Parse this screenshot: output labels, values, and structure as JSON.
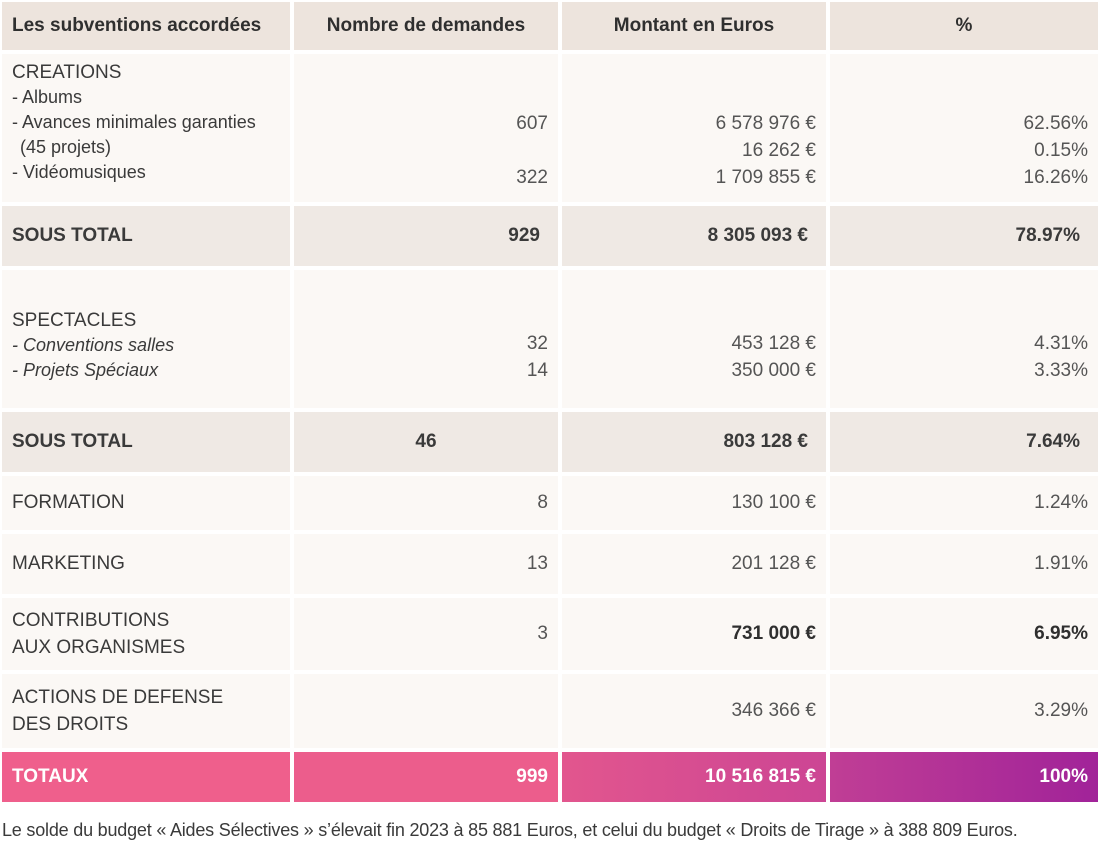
{
  "headers": [
    "Les subventions accordées",
    "Nombre de demandes",
    "Montant en Euros",
    "%"
  ],
  "creations": {
    "label": "CREATIONS",
    "sub": [
      "- Albums",
      "- Avances minimales garanties",
      "(45 projets)",
      "- Vidéomusiques"
    ],
    "nombre": [
      "607",
      "322"
    ],
    "montant": [
      "6 578 976 €",
      "16 262 €",
      "1 709 855 €"
    ],
    "pct": [
      "62.56%",
      "0.15%",
      "16.26%"
    ]
  },
  "sous_total_1": {
    "label": "SOUS TOTAL",
    "nombre": "929",
    "montant": "8 305 093 €",
    "pct": "78.97%"
  },
  "spectacles": {
    "label": "SPECTACLES",
    "sub": [
      "- Conventions salles",
      "- Projets Spéciaux"
    ],
    "nombre": [
      "32",
      "14"
    ],
    "montant": [
      "453 128 €",
      "350 000 €"
    ],
    "pct": [
      "4.31%",
      "3.33%"
    ]
  },
  "sous_total_2": {
    "label": "SOUS TOTAL",
    "nombre": "46",
    "montant": "803 128 €",
    "pct": "7.64%"
  },
  "formation": {
    "label": "FORMATION",
    "nombre": "8",
    "montant": "130 100 €",
    "pct": "1.24%"
  },
  "marketing": {
    "label": "MARKETING",
    "nombre": "13",
    "montant": "201 128 €",
    "pct": "1.91%"
  },
  "contributions": {
    "label1": "CONTRIBUTIONS",
    "label2": "AUX ORGANISMES",
    "nombre": "3",
    "montant": "731 000 €",
    "pct": "6.95%"
  },
  "defense": {
    "label1": "ACTIONS DE DEFENSE",
    "label2": "DES DROITS",
    "montant": "346 366 €",
    "pct": "3.29%"
  },
  "totaux": {
    "label": "TOTAUX",
    "nombre": "999",
    "montant": "10 516 815 €",
    "pct": "100%"
  },
  "footnote": "Le solde du budget « Aides Sélectives » s’élevait fin 2023 à 85 881 Euros, et celui du budget « Droits de Tirage » à 388 809 Euros."
}
